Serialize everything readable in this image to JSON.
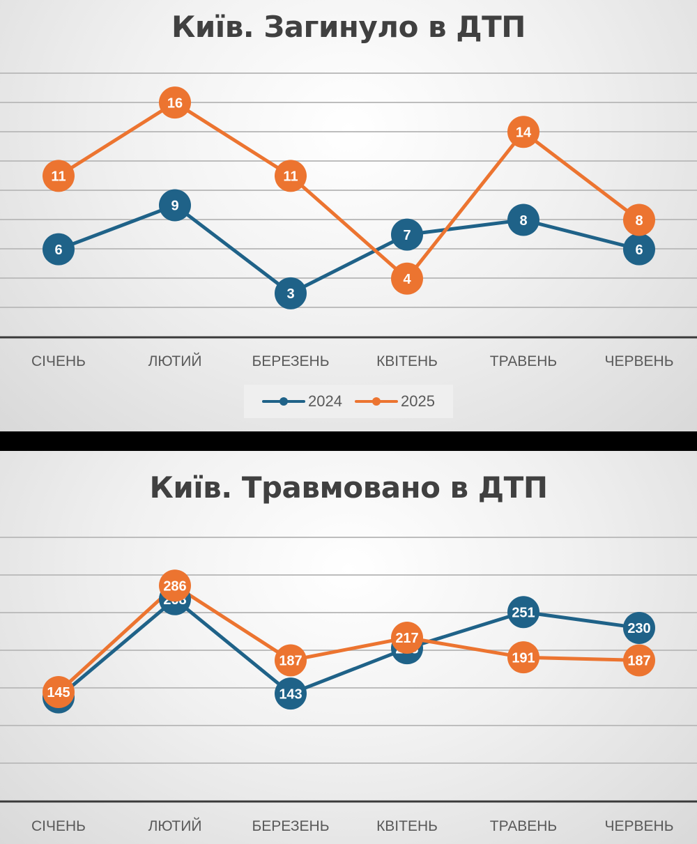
{
  "chart_data": [
    {
      "type": "line",
      "title": "Київ. Загинуло в ДТП",
      "categories": [
        "СІЧЕНЬ",
        "ЛЮТИЙ",
        "БЕРЕЗЕНЬ",
        "КВІТЕНЬ",
        "ТРАВЕНЬ",
        "ЧЕРВЕНЬ"
      ],
      "series": [
        {
          "name": "2024",
          "values": [
            6,
            9,
            3,
            7,
            8,
            6
          ],
          "color": "#1f6288"
        },
        {
          "name": "2025",
          "values": [
            11,
            16,
            11,
            4,
            14,
            8
          ],
          "color": "#ec7430"
        }
      ],
      "ylim": [
        0,
        18
      ],
      "grid": true,
      "data_labels": true,
      "legend": "bottom"
    },
    {
      "type": "line",
      "title": "Київ. Травмовано в ДТП",
      "categories": [
        "СІЧЕНЬ",
        "ЛЮТИЙ",
        "БЕРЕЗЕНЬ",
        "КВІТЕНЬ",
        "ТРАВЕНЬ",
        "ЧЕРВЕНЬ"
      ],
      "series": [
        {
          "name": "2024",
          "values": [
            138,
            268,
            143,
            203,
            251,
            230
          ],
          "color": "#1f6288"
        },
        {
          "name": "2025",
          "values": [
            145,
            286,
            187,
            217,
            191,
            187
          ],
          "color": "#ec7430"
        }
      ],
      "ylim": [
        0,
        350
      ],
      "grid": true,
      "data_labels": true,
      "legend": "none"
    }
  ]
}
